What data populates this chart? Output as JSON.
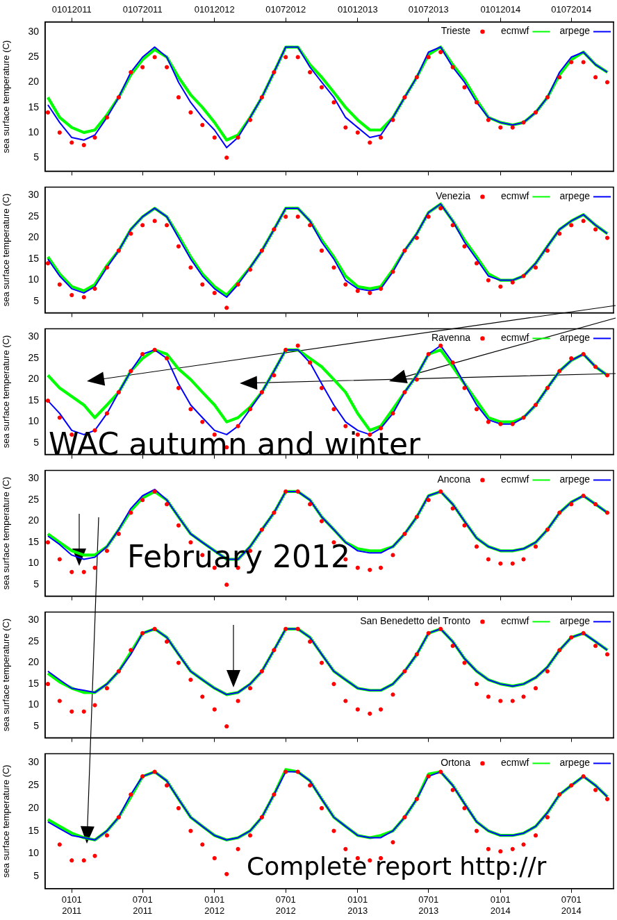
{
  "chart_data": [
    {
      "type": "line",
      "ylabel": "sea surface temperature (C)",
      "legend": "top right",
      "tick_labels": "y",
      "x": [
        "2010-11",
        "2010-12",
        "2011-01",
        "2011-02",
        "2011-03",
        "2011-04",
        "2011-05",
        "2011-06",
        "2011-07",
        "2011-08",
        "2011-09",
        "2011-10",
        "2011-11",
        "2011-12",
        "2012-01",
        "2012-02",
        "2012-03",
        "2012-04",
        "2012-05",
        "2012-06",
        "2012-07",
        "2012-08",
        "2012-09",
        "2012-10",
        "2012-11",
        "2012-12",
        "2013-01",
        "2013-02",
        "2013-03",
        "2013-04",
        "2013-05",
        "2013-06",
        "2013-07",
        "2013-08",
        "2013-09",
        "2013-10",
        "2013-11",
        "2013-12",
        "2014-01",
        "2014-02",
        "2014-03",
        "2014-04",
        "2014-05",
        "2014-06",
        "2014-07",
        "2014-08",
        "2014-09",
        "2014-10"
      ],
      "xlim": [
        "2010-10-25",
        "2014-10-17"
      ],
      "xticks": [
        {
          "value": "2011-01-01",
          "label": null
        },
        {
          "value": "2011-07-01",
          "label": null
        },
        {
          "value": "2012-01-01",
          "label": null
        },
        {
          "value": "2012-07-01",
          "label": null
        },
        {
          "value": "2013-01-01",
          "label": null
        },
        {
          "value": "2013-07-01",
          "label": null
        },
        {
          "value": "2014-01-01",
          "label": null
        },
        {
          "value": "2014-07-01",
          "label": null
        }
      ],
      "x2lim": [
        "2010-10-25",
        "2014-10-17"
      ],
      "x2ticks": [
        {
          "value": "2011-01-01",
          "label": "01012011"
        },
        {
          "value": "2011-07-01",
          "label": "01072011"
        },
        {
          "value": "2012-01-01",
          "label": "01012012"
        },
        {
          "value": "2012-07-01",
          "label": "01072012"
        },
        {
          "value": "2013-01-01",
          "label": "01012013"
        },
        {
          "value": "2013-07-01",
          "label": "01072013"
        },
        {
          "value": "2014-01-01",
          "label": "01012014"
        },
        {
          "value": "2014-07-01",
          "label": "01072014"
        }
      ],
      "ylim": [
        2.3,
        32
      ],
      "yticks": [
        5,
        10,
        15,
        20,
        25,
        30
      ],
      "series": [
        {
          "name": "Trieste",
          "type": "scatter",
          "marker": "circle",
          "color": "#ff0000",
          "values": [
            14,
            10,
            8,
            7.5,
            9,
            13,
            17,
            22,
            23,
            25,
            23,
            17,
            14,
            11.5,
            9,
            5,
            9,
            12.5,
            17,
            22,
            25,
            25,
            22,
            19,
            16,
            11,
            10,
            8,
            9,
            12.5,
            17,
            21,
            25,
            26,
            23,
            19,
            16,
            12.5,
            11,
            11,
            12,
            14,
            17,
            21,
            24,
            24,
            21,
            20
          ]
        },
        {
          "name": "ecmwf",
          "color": "#00ff00",
          "values": [
            17,
            13,
            11,
            10,
            10.5,
            13.5,
            17,
            21.5,
            24.5,
            26.5,
            25,
            21,
            17.5,
            15,
            12,
            8.5,
            9.5,
            13,
            17,
            22,
            27,
            27,
            23.5,
            21,
            18,
            15,
            12.5,
            10.5,
            10.5,
            13,
            17,
            21,
            25.5,
            27,
            23.5,
            20.5,
            16.5,
            13,
            12,
            11.5,
            12,
            14,
            17,
            21.5,
            24.5,
            26,
            23.5,
            22
          ]
        },
        {
          "name": "arpege",
          "color": "#0000ff",
          "values": [
            15.5,
            12,
            9,
            8.5,
            9.5,
            13,
            17,
            22,
            25,
            27,
            25,
            20,
            16,
            13,
            10.5,
            7,
            9,
            13,
            17,
            22,
            27,
            27,
            23,
            20,
            17,
            13,
            11,
            9,
            9.5,
            13,
            17,
            21,
            26,
            27,
            23,
            20,
            16,
            13,
            12,
            11.5,
            12,
            14,
            17,
            22,
            25,
            26,
            23.5,
            22
          ]
        }
      ]
    },
    {
      "type": "line",
      "ylabel": "sea surface temperature (C)",
      "legend": "top right",
      "tick_labels": "y",
      "x": [
        "2010-11",
        "2010-12",
        "2011-01",
        "2011-02",
        "2011-03",
        "2011-04",
        "2011-05",
        "2011-06",
        "2011-07",
        "2011-08",
        "2011-09",
        "2011-10",
        "2011-11",
        "2011-12",
        "2012-01",
        "2012-02",
        "2012-03",
        "2012-04",
        "2012-05",
        "2012-06",
        "2012-07",
        "2012-08",
        "2012-09",
        "2012-10",
        "2012-11",
        "2012-12",
        "2013-01",
        "2013-02",
        "2013-03",
        "2013-04",
        "2013-05",
        "2013-06",
        "2013-07",
        "2013-08",
        "2013-09",
        "2013-10",
        "2013-11",
        "2013-12",
        "2014-01",
        "2014-02",
        "2014-03",
        "2014-04",
        "2014-05",
        "2014-06",
        "2014-07",
        "2014-08",
        "2014-09",
        "2014-10"
      ],
      "xlim": [
        "2010-10-25",
        "2014-10-17"
      ],
      "xticks": [
        {
          "value": "2011-01-01",
          "label": null
        },
        {
          "value": "2011-07-01",
          "label": null
        },
        {
          "value": "2012-01-01",
          "label": null
        },
        {
          "value": "2012-07-01",
          "label": null
        },
        {
          "value": "2013-01-01",
          "label": null
        },
        {
          "value": "2013-07-01",
          "label": null
        },
        {
          "value": "2014-01-01",
          "label": null
        },
        {
          "value": "2014-07-01",
          "label": null
        }
      ],
      "ylim": [
        2.3,
        32
      ],
      "yticks": [
        5,
        10,
        15,
        20,
        25,
        30
      ],
      "series": [
        {
          "name": "Venezia",
          "type": "scatter",
          "marker": "circle",
          "color": "#ff0000",
          "values": [
            14,
            9,
            6.5,
            6,
            8,
            13,
            17,
            21,
            23,
            24,
            23,
            18,
            13,
            9,
            7,
            3.5,
            9,
            12.5,
            17,
            22,
            25,
            25,
            23,
            17,
            13,
            9,
            7.5,
            7,
            8,
            12,
            17,
            20,
            25,
            27,
            23,
            18,
            14,
            10,
            8.5,
            9.5,
            11,
            13,
            17,
            21,
            23,
            24,
            22,
            20
          ]
        },
        {
          "name": "ecmwf",
          "color": "#00ff00",
          "values": [
            15.5,
            11.5,
            8.5,
            7.5,
            9,
            13.5,
            17,
            22,
            25,
            27,
            25,
            20.5,
            15.5,
            11.5,
            8.5,
            6.5,
            9.5,
            13,
            17,
            22,
            27,
            27,
            24,
            19.5,
            15.5,
            11,
            8.5,
            8,
            8.5,
            12.5,
            17,
            21,
            26,
            28,
            24,
            19.5,
            15.5,
            11.5,
            10,
            10,
            11,
            14,
            18,
            22,
            24,
            25.5,
            23,
            21
          ]
        },
        {
          "name": "arpege",
          "color": "#0000ff",
          "values": [
            15,
            11,
            8,
            7,
            8.5,
            13,
            17,
            22,
            25,
            27,
            25,
            20,
            15,
            11,
            8,
            6,
            9,
            13,
            17,
            22,
            27,
            27,
            24,
            19,
            15,
            10,
            8,
            7.5,
            8,
            12,
            17,
            21,
            26,
            28,
            24,
            19,
            15,
            11,
            10,
            10,
            11,
            14,
            18,
            22,
            24,
            25.5,
            23,
            21
          ]
        }
      ]
    },
    {
      "type": "line",
      "ylabel": "sea surface temperature (C)",
      "legend": "top right",
      "tick_labels": "y",
      "annotations": [
        "WAC autumn and winter"
      ],
      "x": [
        "2010-11",
        "2010-12",
        "2011-01",
        "2011-02",
        "2011-03",
        "2011-04",
        "2011-05",
        "2011-06",
        "2011-07",
        "2011-08",
        "2011-09",
        "2011-10",
        "2011-11",
        "2011-12",
        "2012-01",
        "2012-02",
        "2012-03",
        "2012-04",
        "2012-05",
        "2012-06",
        "2012-07",
        "2012-08",
        "2012-09",
        "2012-10",
        "2012-11",
        "2012-12",
        "2013-01",
        "2013-02",
        "2013-03",
        "2013-04",
        "2013-05",
        "2013-06",
        "2013-07",
        "2013-08",
        "2013-09",
        "2013-10",
        "2013-11",
        "2013-12",
        "2014-01",
        "2014-02",
        "2014-03",
        "2014-04",
        "2014-05",
        "2014-06",
        "2014-07",
        "2014-08",
        "2014-09",
        "2014-10"
      ],
      "xlim": [
        "2010-10-25",
        "2014-10-17"
      ],
      "xticks": [
        {
          "value": "2011-01-01",
          "label": null
        },
        {
          "value": "2011-07-01",
          "label": null
        },
        {
          "value": "2012-01-01",
          "label": null
        },
        {
          "value": "2012-07-01",
          "label": null
        },
        {
          "value": "2013-01-01",
          "label": null
        },
        {
          "value": "2013-07-01",
          "label": null
        },
        {
          "value": "2014-01-01",
          "label": null
        },
        {
          "value": "2014-07-01",
          "label": null
        }
      ],
      "ylim": [
        2.3,
        32
      ],
      "yticks": [
        5,
        10,
        15,
        20,
        25,
        30
      ],
      "series": [
        {
          "name": "Ravenna",
          "type": "scatter",
          "marker": "circle",
          "color": "#ff0000",
          "values": [
            15,
            11,
            7,
            null,
            8,
            12,
            17,
            22,
            26,
            27,
            25,
            18,
            13,
            10,
            7,
            4,
            9,
            13,
            17,
            21,
            27,
            28,
            24,
            18,
            13,
            9,
            7,
            7,
            8.5,
            12,
            17,
            20,
            26,
            28,
            24,
            18,
            13,
            10,
            9.5,
            9.5,
            11,
            14,
            18,
            22,
            25,
            26,
            23,
            21
          ]
        },
        {
          "name": "ecmwf",
          "color": "#00ff00",
          "values": [
            21,
            18,
            16,
            14,
            11,
            14,
            17,
            22,
            25,
            27,
            26,
            22.5,
            20,
            17,
            14,
            10,
            11,
            13.5,
            17,
            22,
            27,
            27,
            25,
            23,
            20,
            17,
            12,
            8,
            9,
            13,
            17,
            21,
            26,
            27,
            23,
            19,
            15,
            11,
            10,
            10,
            11,
            14,
            18,
            22,
            24.5,
            26,
            23,
            21
          ]
        },
        {
          "name": "arpege",
          "color": "#0000ff",
          "values": [
            15,
            12,
            8,
            7,
            8,
            12,
            17,
            22,
            26,
            27,
            25,
            19,
            14,
            11,
            8,
            7,
            9,
            13,
            17,
            22,
            27,
            27,
            24,
            19,
            14,
            10,
            8,
            7,
            8.5,
            12,
            17,
            21,
            26,
            28,
            24,
            19,
            14,
            10.5,
            9.5,
            9.5,
            11,
            14,
            18,
            22,
            24.5,
            26,
            23,
            21
          ]
        }
      ]
    },
    {
      "type": "line",
      "ylabel": "sea surface temperature (C)",
      "legend": "top right",
      "tick_labels": "y",
      "annotations": [
        "February 2012"
      ],
      "x": [
        "2010-11",
        "2010-12",
        "2011-01",
        "2011-02",
        "2011-03",
        "2011-04",
        "2011-05",
        "2011-06",
        "2011-07",
        "2011-08",
        "2011-09",
        "2011-10",
        "2011-11",
        "2011-12",
        "2012-01",
        "2012-02",
        "2012-03",
        "2012-04",
        "2012-05",
        "2012-06",
        "2012-07",
        "2012-08",
        "2012-09",
        "2012-10",
        "2012-11",
        "2012-12",
        "2013-01",
        "2013-02",
        "2013-03",
        "2013-04",
        "2013-05",
        "2013-06",
        "2013-07",
        "2013-08",
        "2013-09",
        "2013-10",
        "2013-11",
        "2013-12",
        "2014-01",
        "2014-02",
        "2014-03",
        "2014-04",
        "2014-05",
        "2014-06",
        "2014-07",
        "2014-08",
        "2014-09",
        "2014-10"
      ],
      "xlim": [
        "2010-10-25",
        "2014-10-17"
      ],
      "xticks": [
        {
          "value": "2011-01-01",
          "label": null
        },
        {
          "value": "2011-07-01",
          "label": null
        },
        {
          "value": "2012-01-01",
          "label": null
        },
        {
          "value": "2012-07-01",
          "label": null
        },
        {
          "value": "2013-01-01",
          "label": null
        },
        {
          "value": "2013-07-01",
          "label": null
        },
        {
          "value": "2014-01-01",
          "label": null
        },
        {
          "value": "2014-07-01",
          "label": null
        }
      ],
      "ylim": [
        2.3,
        32
      ],
      "yticks": [
        5,
        10,
        15,
        20,
        25,
        30
      ],
      "series": [
        {
          "name": "Ancona",
          "type": "scatter",
          "marker": "circle",
          "color": "#ff0000",
          "values": [
            15,
            11,
            8,
            8,
            9,
            13,
            17,
            22,
            25,
            27,
            24,
            19,
            15,
            12,
            9,
            5,
            9,
            13,
            18,
            22,
            27,
            27,
            24,
            20,
            15,
            11,
            9,
            8.5,
            9,
            12,
            17,
            21,
            25,
            27,
            23,
            19,
            14,
            11,
            10,
            10,
            11,
            14,
            18,
            22,
            24,
            26,
            24,
            22
          ]
        },
        {
          "name": "ecmwf",
          "color": "#00ff00",
          "values": [
            17,
            15,
            13,
            12,
            12,
            14,
            18,
            22.5,
            25.5,
            27,
            25,
            21,
            17,
            15,
            13,
            11,
            11,
            14,
            18,
            22,
            27,
            27,
            25,
            21,
            18,
            15,
            13.5,
            13,
            13,
            14,
            17,
            21,
            26,
            27,
            24,
            20,
            16,
            14,
            13,
            13,
            13.5,
            15,
            18,
            22,
            24.5,
            26,
            24,
            22
          ]
        },
        {
          "name": "arpege",
          "color": "#0000ff",
          "values": [
            16.5,
            14.5,
            12,
            11,
            11.5,
            14,
            18,
            23,
            26,
            27.5,
            25,
            21,
            17,
            15,
            13,
            11,
            11,
            14,
            18,
            22,
            27,
            27,
            25,
            21,
            18,
            15,
            13,
            12.5,
            12.5,
            14,
            17,
            21,
            26,
            27,
            24,
            20,
            16,
            14,
            13,
            13,
            13.5,
            15,
            18,
            22,
            24.5,
            26,
            24,
            22
          ]
        }
      ]
    },
    {
      "type": "line",
      "ylabel": "sea surface temperature (C)",
      "legend": "top right",
      "tick_labels": "y",
      "x": [
        "2010-11",
        "2010-12",
        "2011-01",
        "2011-02",
        "2011-03",
        "2011-04",
        "2011-05",
        "2011-06",
        "2011-07",
        "2011-08",
        "2011-09",
        "2011-10",
        "2011-11",
        "2011-12",
        "2012-01",
        "2012-02",
        "2012-03",
        "2012-04",
        "2012-05",
        "2012-06",
        "2012-07",
        "2012-08",
        "2012-09",
        "2012-10",
        "2012-11",
        "2012-12",
        "2013-01",
        "2013-02",
        "2013-03",
        "2013-04",
        "2013-05",
        "2013-06",
        "2013-07",
        "2013-08",
        "2013-09",
        "2013-10",
        "2013-11",
        "2013-12",
        "2014-01",
        "2014-02",
        "2014-03",
        "2014-04",
        "2014-05",
        "2014-06",
        "2014-07",
        "2014-08",
        "2014-09",
        "2014-10"
      ],
      "xlim": [
        "2010-10-25",
        "2014-10-17"
      ],
      "xticks": [
        {
          "value": "2011-01-01",
          "label": null
        },
        {
          "value": "2011-07-01",
          "label": null
        },
        {
          "value": "2012-01-01",
          "label": null
        },
        {
          "value": "2012-07-01",
          "label": null
        },
        {
          "value": "2013-01-01",
          "label": null
        },
        {
          "value": "2013-07-01",
          "label": null
        },
        {
          "value": "2014-01-01",
          "label": null
        },
        {
          "value": "2014-07-01",
          "label": null
        }
      ],
      "ylim": [
        2.3,
        32
      ],
      "yticks": [
        5,
        10,
        15,
        20,
        25,
        30
      ],
      "series": [
        {
          "name": "San Benedetto del Tronto",
          "type": "scatter",
          "marker": "circle",
          "color": "#ff0000",
          "values": [
            15,
            11,
            8.5,
            8.5,
            10,
            14,
            18,
            23,
            27,
            28,
            25,
            20,
            16,
            12,
            9,
            5,
            11,
            14,
            18,
            23,
            28,
            28,
            25,
            20,
            15,
            11,
            9,
            8,
            9,
            12.5,
            18,
            22,
            27,
            28,
            24,
            20,
            15,
            12,
            11,
            11,
            12,
            14,
            18,
            23,
            26,
            27,
            24,
            22
          ]
        },
        {
          "name": "ecmwf",
          "color": "#00ff00",
          "values": [
            17.5,
            15.5,
            14,
            13,
            13,
            15,
            18,
            22.5,
            27,
            28,
            26,
            22,
            18,
            16,
            14,
            12.5,
            13,
            15,
            18,
            23,
            28,
            28,
            26,
            22,
            18,
            16,
            14,
            13.5,
            13.5,
            15,
            18,
            22,
            27,
            28,
            25,
            21,
            18,
            16,
            15,
            14.5,
            15,
            16.5,
            19,
            23,
            26,
            27,
            25,
            23
          ]
        },
        {
          "name": "arpege",
          "color": "#0000ff",
          "values": [
            18,
            16,
            14,
            13.5,
            13,
            15,
            18,
            22,
            27,
            28,
            26,
            22,
            18,
            16,
            14,
            12.5,
            13,
            15,
            18,
            23,
            28,
            28,
            26,
            22,
            18,
            16,
            14,
            13.5,
            13.5,
            15,
            18,
            22,
            27,
            28,
            25,
            21,
            18,
            16,
            15,
            14.5,
            15,
            16.5,
            19,
            23,
            26,
            27,
            25,
            23
          ]
        }
      ]
    },
    {
      "type": "line",
      "ylabel": "sea surface temperature (C)",
      "legend": "top right",
      "annotations": [
        "Complete report http://r"
      ],
      "x": [
        "2010-11",
        "2010-12",
        "2011-01",
        "2011-02",
        "2011-03",
        "2011-04",
        "2011-05",
        "2011-06",
        "2011-07",
        "2011-08",
        "2011-09",
        "2011-10",
        "2011-11",
        "2011-12",
        "2012-01",
        "2012-02",
        "2012-03",
        "2012-04",
        "2012-05",
        "2012-06",
        "2012-07",
        "2012-08",
        "2012-09",
        "2012-10",
        "2012-11",
        "2012-12",
        "2013-01",
        "2013-02",
        "2013-03",
        "2013-04",
        "2013-05",
        "2013-06",
        "2013-07",
        "2013-08",
        "2013-09",
        "2013-10",
        "2013-11",
        "2013-12",
        "2014-01",
        "2014-02",
        "2014-03",
        "2014-04",
        "2014-05",
        "2014-06",
        "2014-07",
        "2014-08",
        "2014-09",
        "2014-10"
      ],
      "xlim": [
        "2010-10-25",
        "2014-10-17"
      ],
      "xticks": [
        {
          "value": "2011-01-01",
          "label": "0101\n2011"
        },
        {
          "value": "2011-07-01",
          "label": "0701\n2011"
        },
        {
          "value": "2012-01-01",
          "label": "0101\n2012"
        },
        {
          "value": "2012-07-01",
          "label": "0701\n2012"
        },
        {
          "value": "2013-01-01",
          "label": "0101\n2013"
        },
        {
          "value": "2013-07-01",
          "label": "0701\n2013"
        },
        {
          "value": "2014-01-01",
          "label": "0101\n2014"
        },
        {
          "value": "2014-07-01",
          "label": "0701\n2014"
        }
      ],
      "ylim": [
        2.3,
        32
      ],
      "yticks": [
        5,
        10,
        15,
        20,
        25,
        30
      ],
      "series": [
        {
          "name": "Ortona",
          "type": "scatter",
          "marker": "circle",
          "color": "#ff0000",
          "values": [
            null,
            12,
            8.5,
            8.5,
            9.5,
            14,
            18,
            23,
            27,
            28,
            25,
            20,
            15,
            12,
            9,
            5.5,
            11,
            14,
            18,
            23,
            28,
            28,
            25,
            20,
            15,
            11,
            9,
            8.5,
            9,
            12.5,
            18,
            22,
            27,
            28,
            24,
            20,
            15,
            11,
            10.5,
            11,
            12,
            14,
            18,
            23,
            25,
            27,
            24,
            22
          ]
        },
        {
          "name": "ecmwf",
          "color": "#00ff00",
          "values": [
            17.5,
            16,
            14.5,
            13.5,
            13,
            15,
            18,
            22.5,
            27,
            28,
            26,
            22,
            18,
            16,
            14,
            13,
            13.5,
            15,
            18,
            23,
            28.5,
            28,
            26,
            22,
            18,
            16,
            14,
            13.5,
            14,
            15,
            18,
            22,
            27.5,
            28,
            25,
            21,
            17,
            15,
            14,
            14,
            14.5,
            16,
            19,
            23,
            25,
            27,
            25,
            22.5
          ]
        },
        {
          "name": "arpege",
          "color": "#0000ff",
          "values": [
            17,
            15.5,
            14,
            13.5,
            13,
            15,
            18,
            23,
            27,
            28,
            26,
            22,
            18,
            16,
            14,
            13,
            13.5,
            15,
            18,
            23,
            28,
            28,
            26,
            22,
            18,
            16,
            14,
            13.5,
            13.5,
            15,
            18,
            22,
            27,
            28,
            25,
            21,
            17,
            15,
            14,
            14,
            14.5,
            16,
            19,
            23,
            25,
            27,
            25,
            22.5
          ]
        }
      ]
    }
  ]
}
